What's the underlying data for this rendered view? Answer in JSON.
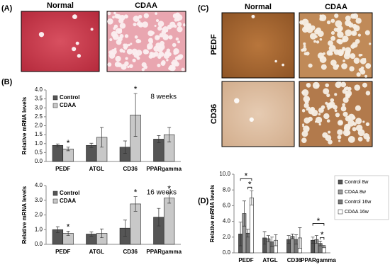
{
  "panel_labels": [
    "(A)",
    "(B)",
    "(C)",
    "(D)"
  ],
  "panel_a": {
    "columns": [
      "Normal",
      "CDAA"
    ]
  },
  "panel_c": {
    "columns": [
      "Normal",
      "CDAA"
    ],
    "rows": [
      "PEDF",
      "CD36"
    ]
  },
  "chart_data": [
    {
      "type": "bar",
      "annotation": "8 weeks",
      "y_label": "Relative mRNA levels",
      "categories": [
        "PEDF",
        "ATGL",
        "CD36",
        "PPARgamma"
      ],
      "series": [
        {
          "name": "Control",
          "color": "#555555",
          "values": [
            0.9,
            0.9,
            0.8,
            1.25
          ],
          "errors": [
            0.08,
            0.12,
            0.35,
            0.2
          ]
        },
        {
          "name": "CDAA",
          "color": "#c8c8c8",
          "values": [
            0.7,
            1.35,
            2.6,
            1.5
          ],
          "errors": [
            0.1,
            0.55,
            1.2,
            0.4
          ]
        }
      ],
      "significance": [
        {
          "label": "*",
          "series": 1,
          "category": 0
        },
        {
          "label": "*",
          "series": 1,
          "category": 2
        }
      ],
      "ylim": [
        0,
        4
      ],
      "yticks": [
        {
          "value": 0,
          "label": "0.0"
        },
        0.5,
        {
          "value": 1,
          "label": "1.0"
        },
        1.5,
        {
          "value": 2,
          "label": "2.0"
        },
        2.5,
        {
          "value": 3,
          "label": "3.0"
        },
        3.5,
        {
          "value": 4,
          "label": "4.0"
        }
      ],
      "grid": false,
      "legend": "upper left"
    },
    {
      "type": "bar",
      "annotation": "16 weeks",
      "y_label": "Relative mRNA levels",
      "categories": [
        "PEDF",
        "ATGL",
        "CD36",
        "PPARgamma"
      ],
      "series": [
        {
          "name": "Control",
          "color": "#555555",
          "values": [
            1.0,
            0.7,
            1.1,
            1.85
          ],
          "errors": [
            0.2,
            0.15,
            0.55,
            0.6
          ]
        },
        {
          "name": "CDAA",
          "color": "#c8c8c8",
          "values": [
            0.75,
            0.75,
            2.75,
            3.15
          ],
          "errors": [
            0.15,
            0.3,
            0.5,
            0.35
          ]
        }
      ],
      "significance": [
        {
          "label": "*",
          "series": 1,
          "category": 0
        },
        {
          "label": "*",
          "series": 1,
          "category": 2
        },
        {
          "label": "*",
          "series": 1,
          "category": 3
        }
      ],
      "ylim": [
        0,
        4
      ],
      "yticks": [
        {
          "value": 0,
          "label": "0.0"
        },
        {
          "value": 1,
          "label": "1.0"
        },
        {
          "value": 2,
          "label": "2.0"
        },
        {
          "value": 3,
          "label": "3.0"
        },
        {
          "value": 4,
          "label": "4.0"
        }
      ],
      "grid": false,
      "legend": "upper left"
    },
    {
      "type": "bar",
      "y_label": "Relative mRNA levels",
      "categories": [
        "PEDF",
        "ATGL",
        "CD36",
        "PPARgamma"
      ],
      "series": [
        {
          "name": "Control 8w",
          "color": "#555555",
          "values": [
            2.4,
            1.9,
            1.7,
            1.6
          ],
          "errors": [
            1.5,
            0.8,
            0.5,
            0.4
          ]
        },
        {
          "name": "CDAA 8w",
          "color": "#999999",
          "values": [
            5.0,
            1.8,
            2.1,
            1.7
          ],
          "errors": [
            1.6,
            0.4,
            0.3,
            0.5
          ]
        },
        {
          "name": "Control 16w",
          "color": "#777777",
          "values": [
            2.5,
            1.4,
            1.7,
            1.2
          ],
          "errors": [
            0.5,
            0.6,
            0.6,
            0.3
          ]
        },
        {
          "name": "CDAA 16w",
          "color": "#ffffff",
          "values": [
            7.0,
            1.6,
            1.9,
            0.8
          ],
          "errors": [
            0.9,
            0.7,
            1.3,
            0.15
          ]
        }
      ],
      "significance": [
        {
          "label": "*",
          "category": 0,
          "from": 0,
          "to": 3
        },
        {
          "label": "*",
          "category": 0,
          "from": 2,
          "to": 3
        },
        {
          "label": "*",
          "category": 3,
          "from": 0,
          "to": 3
        },
        {
          "label": "*",
          "category": 3,
          "from": 2,
          "to": 3
        }
      ],
      "ylim": [
        0,
        10
      ],
      "yticks": [
        {
          "value": 0,
          "label": "0.0"
        },
        {
          "value": 2,
          "label": "2.0"
        },
        {
          "value": 4,
          "label": "4.0"
        },
        {
          "value": 6,
          "label": "6.0"
        },
        {
          "value": 8,
          "label": "8.0"
        },
        {
          "value": 10,
          "label": "10.0"
        }
      ],
      "grid": false,
      "legend": "right"
    }
  ]
}
